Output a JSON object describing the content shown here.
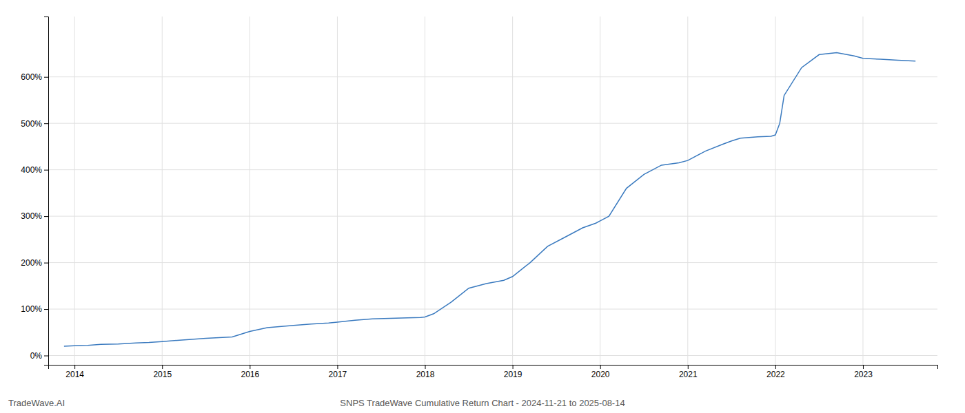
{
  "chart_data": {
    "type": "line",
    "title": "SNPS TradeWave Cumulative Return Chart - 2024-11-21 to 2025-08-14",
    "annotations": [
      "TradeWave.AI"
    ],
    "color": "#3a7abf",
    "x": [
      2013.88,
      2014.0,
      2014.15,
      2014.3,
      2014.5,
      2014.7,
      2014.85,
      2015.0,
      2015.2,
      2015.5,
      2015.8,
      2016.0,
      2016.2,
      2016.5,
      2016.7,
      2016.9,
      2017.0,
      2017.2,
      2017.4,
      2017.6,
      2017.8,
      2017.95,
      2018.0,
      2018.1,
      2018.3,
      2018.5,
      2018.7,
      2018.9,
      2019.0,
      2019.2,
      2019.4,
      2019.6,
      2019.8,
      2019.95,
      2020.0,
      2020.1,
      2020.3,
      2020.5,
      2020.7,
      2020.9,
      2021.0,
      2021.2,
      2021.4,
      2021.5,
      2021.6,
      2021.8,
      2021.95,
      2022.0,
      2022.05,
      2022.1,
      2022.3,
      2022.5,
      2022.7,
      2022.9,
      2023.0,
      2023.2,
      2023.4,
      2023.6
    ],
    "values": [
      20,
      21,
      22,
      24,
      25,
      27,
      28,
      30,
      33,
      37,
      40,
      52,
      60,
      65,
      68,
      70,
      72,
      76,
      79,
      80,
      81,
      82,
      83,
      90,
      115,
      145,
      155,
      162,
      170,
      200,
      235,
      255,
      275,
      285,
      290,
      300,
      360,
      390,
      410,
      415,
      420,
      440,
      455,
      462,
      468,
      471,
      472,
      475,
      500,
      560,
      620,
      648,
      652,
      645,
      640,
      638,
      636,
      634
    ],
    "xlim": [
      2013.7,
      2023.85
    ],
    "ylim": [
      -20,
      730
    ],
    "xticks": [
      2014,
      2015,
      2016,
      2017,
      2018,
      2019,
      2020,
      2021,
      2022,
      2023
    ],
    "yticks": [
      {
        "value": 0,
        "label": "0%"
      },
      {
        "value": 100,
        "label": "100%"
      },
      {
        "value": 200,
        "label": "200%"
      },
      {
        "value": 300,
        "label": "300%"
      },
      {
        "value": 400,
        "label": "400%"
      },
      {
        "value": 500,
        "label": "500%"
      },
      {
        "value": 600,
        "label": "600%"
      }
    ],
    "grid": true
  }
}
